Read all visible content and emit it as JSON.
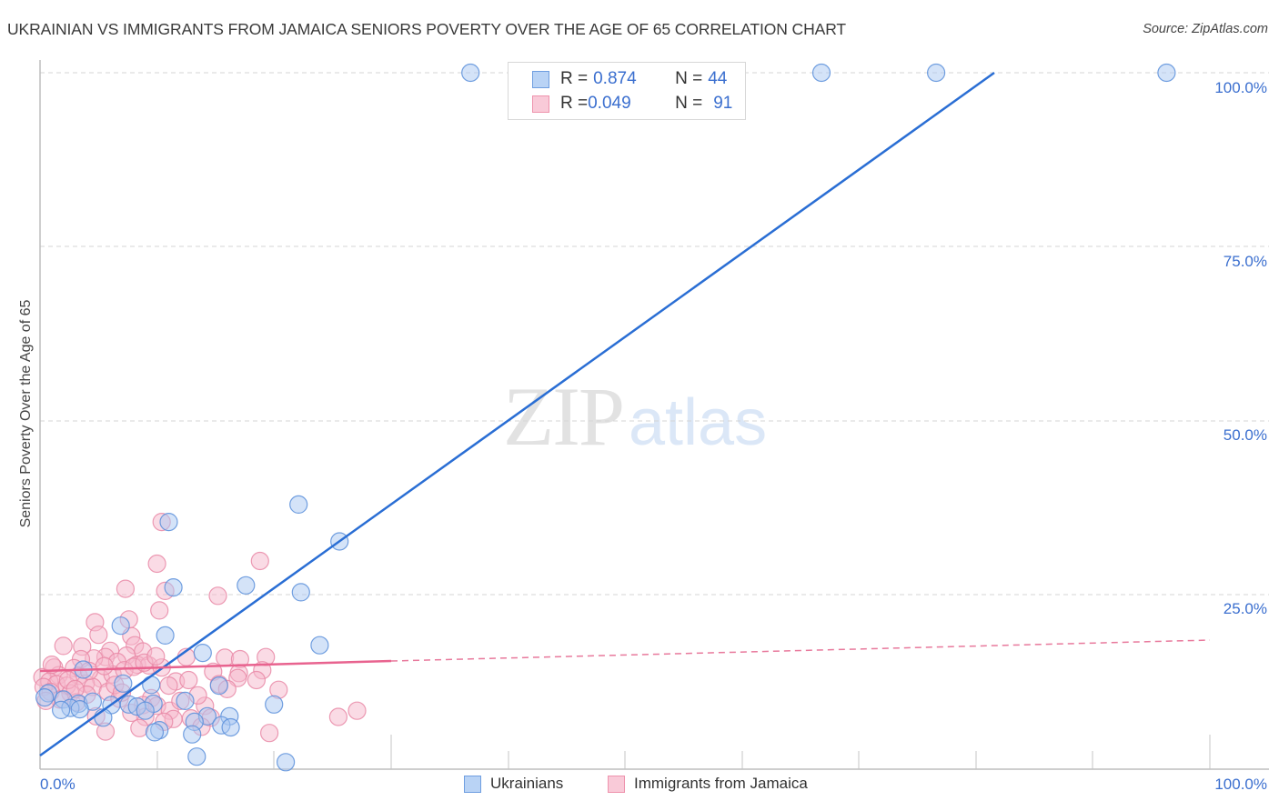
{
  "header": {
    "title": "UKRAINIAN VS IMMIGRANTS FROM JAMAICA SENIORS POVERTY OVER THE AGE OF 65 CORRELATION CHART",
    "source": "Source: ZipAtlas.com"
  },
  "watermark": {
    "zip": "ZIP",
    "atlas": "atlas"
  },
  "axes": {
    "ylabel": "Seniors Poverty Over the Age of 65",
    "yticks": [
      "100.0%",
      "75.0%",
      "50.0%",
      "25.0%"
    ],
    "xticks": [
      "0.0%",
      "100.0%"
    ]
  },
  "legend": {
    "rows": [
      {
        "r_label": "R = ",
        "r_value": "0.874",
        "n_label": "N = ",
        "n_value": "44",
        "color": "#a9c8f2",
        "border": "#6f9ee0"
      },
      {
        "r_label": "R = ",
        "r_value": "0.049",
        "n_label": "N = ",
        "n_value": "91",
        "color": "#f8c3d3",
        "border": "#ee93ad"
      }
    ]
  },
  "bottom_legend": {
    "items": [
      {
        "label": "Ukrainians",
        "color": "#b9d3f5",
        "border": "#6f9ee0"
      },
      {
        "label": "Immigrants from Jamaica",
        "color": "#f9cad8",
        "border": "#ee93ad"
      }
    ]
  },
  "colors": {
    "blue_line": "#2a6ed4",
    "pink_line": "#e8638f",
    "blue_fill": "#a9c8f2",
    "blue_stroke": "#5b8fdb",
    "pink_fill": "#f6b8cb",
    "pink_stroke": "#e98aa7",
    "tick_text": "#3b6fcf"
  },
  "chart_data": {
    "type": "scatter",
    "title": "UKRAINIAN VS IMMIGRANTS FROM JAMAICA SENIORS POVERTY OVER THE AGE OF 65 CORRELATION CHART",
    "xlabel": "",
    "ylabel": "Seniors Poverty Over the Age of 65",
    "xlim": [
      0,
      100
    ],
    "ylim": [
      0,
      100
    ],
    "x_tick_labels": [
      "0.0%",
      "100.0%"
    ],
    "y_tick_labels": [
      "25.0%",
      "50.0%",
      "75.0%",
      "100.0%"
    ],
    "grid": "horizontal dashed at 25/50/75/100",
    "legend_position": "bottom",
    "series": [
      {
        "name": "Ukrainians",
        "R": 0.874,
        "N": 44,
        "trendline": {
          "x": [
            0,
            81.6
          ],
          "y": [
            2.0,
            100.0
          ],
          "style": "solid"
        },
        "points": [
          [
            36.8,
            100.0
          ],
          [
            66.8,
            100.0
          ],
          [
            76.6,
            100.0
          ],
          [
            96.3,
            100.0
          ],
          [
            22.1,
            38.0
          ],
          [
            25.6,
            32.7
          ],
          [
            11.0,
            35.5
          ],
          [
            17.6,
            26.4
          ],
          [
            11.4,
            26.1
          ],
          [
            22.3,
            25.4
          ],
          [
            6.9,
            20.6
          ],
          [
            10.7,
            19.2
          ],
          [
            23.9,
            17.8
          ],
          [
            13.9,
            16.7
          ],
          [
            3.7,
            14.3
          ],
          [
            7.1,
            12.3
          ],
          [
            9.5,
            12.1
          ],
          [
            15.3,
            12.0
          ],
          [
            0.7,
            10.9
          ],
          [
            0.4,
            10.3
          ],
          [
            2.0,
            10.0
          ],
          [
            3.3,
            9.4
          ],
          [
            4.5,
            9.7
          ],
          [
            7.6,
            9.3
          ],
          [
            9.7,
            9.4
          ],
          [
            12.4,
            9.8
          ],
          [
            20.0,
            9.3
          ],
          [
            6.1,
            9.2
          ],
          [
            8.3,
            9.0
          ],
          [
            2.6,
            8.8
          ],
          [
            3.4,
            8.6
          ],
          [
            1.8,
            8.5
          ],
          [
            9.0,
            8.4
          ],
          [
            14.3,
            7.6
          ],
          [
            16.2,
            7.6
          ],
          [
            5.4,
            7.4
          ],
          [
            13.2,
            6.8
          ],
          [
            15.5,
            6.3
          ],
          [
            10.2,
            5.6
          ],
          [
            9.8,
            5.3
          ],
          [
            13.0,
            5.0
          ],
          [
            16.3,
            6.0
          ],
          [
            13.4,
            1.8
          ],
          [
            21.0,
            1.0
          ]
        ]
      },
      {
        "name": "Immigrants from Jamaica",
        "R": 0.049,
        "N": 91,
        "trendline": {
          "x": [
            0,
            30,
            100
          ],
          "y": [
            14.0,
            15.2,
            18.3
          ],
          "style": "solid to 30%, dashed beyond"
        },
        "points": [
          [
            10.4,
            35.5
          ],
          [
            10.0,
            29.5
          ],
          [
            18.8,
            29.9
          ],
          [
            7.3,
            25.9
          ],
          [
            10.7,
            25.6
          ],
          [
            15.2,
            24.9
          ],
          [
            10.2,
            22.8
          ],
          [
            7.6,
            21.5
          ],
          [
            4.7,
            21.1
          ],
          [
            5.0,
            19.3
          ],
          [
            7.8,
            19.1
          ],
          [
            2.0,
            17.7
          ],
          [
            3.6,
            17.6
          ],
          [
            8.1,
            17.8
          ],
          [
            6.0,
            17.0
          ],
          [
            8.8,
            16.9
          ],
          [
            5.6,
            16.1
          ],
          [
            4.6,
            15.9
          ],
          [
            7.4,
            16.3
          ],
          [
            12.5,
            16.1
          ],
          [
            15.8,
            16.0
          ],
          [
            17.1,
            15.8
          ],
          [
            19.3,
            16.1
          ],
          [
            3.5,
            15.8
          ],
          [
            6.6,
            15.4
          ],
          [
            8.3,
            15.0
          ],
          [
            9.3,
            14.9
          ],
          [
            10.4,
            14.6
          ],
          [
            1.2,
            14.6
          ],
          [
            2.9,
            14.5
          ],
          [
            1.6,
            13.5
          ],
          [
            3.3,
            13.4
          ],
          [
            5.2,
            13.0
          ],
          [
            6.2,
            13.6
          ],
          [
            7.2,
            14.2
          ],
          [
            8.0,
            14.7
          ],
          [
            14.8,
            14.0
          ],
          [
            17.0,
            13.8
          ],
          [
            19.0,
            14.2
          ],
          [
            0.2,
            13.2
          ],
          [
            0.8,
            12.6
          ],
          [
            1.4,
            12.2
          ],
          [
            2.3,
            12.0
          ],
          [
            3.9,
            12.3
          ],
          [
            4.5,
            11.8
          ],
          [
            0.3,
            11.8
          ],
          [
            0.9,
            11.1
          ],
          [
            11.6,
            12.6
          ],
          [
            12.7,
            12.8
          ],
          [
            15.3,
            12.2
          ],
          [
            16.9,
            13.1
          ],
          [
            5.8,
            11.1
          ],
          [
            2.6,
            10.9
          ],
          [
            4.0,
            10.7
          ],
          [
            6.8,
            10.1
          ],
          [
            9.5,
            10.2
          ],
          [
            20.4,
            11.4
          ],
          [
            1.7,
            10.0
          ],
          [
            3.1,
            9.6
          ],
          [
            8.8,
            9.2
          ],
          [
            10.0,
            9.1
          ],
          [
            14.1,
            9.1
          ],
          [
            11.1,
            8.4
          ],
          [
            4.8,
            7.6
          ],
          [
            9.0,
            7.5
          ],
          [
            14.6,
            7.4
          ],
          [
            12.9,
            7.3
          ],
          [
            11.4,
            7.2
          ],
          [
            25.5,
            7.5
          ],
          [
            27.1,
            8.4
          ],
          [
            10.6,
            6.8
          ],
          [
            5.6,
            5.4
          ],
          [
            8.5,
            5.9
          ],
          [
            19.6,
            5.2
          ],
          [
            13.8,
            6.1
          ],
          [
            2.4,
            12.8
          ],
          [
            6.4,
            12.1
          ],
          [
            3.0,
            11.5
          ],
          [
            7.0,
            11.0
          ],
          [
            1.0,
            15.0
          ],
          [
            4.2,
            14.1
          ],
          [
            5.5,
            14.8
          ],
          [
            8.9,
            15.3
          ],
          [
            9.9,
            16.2
          ],
          [
            11.0,
            12.0
          ],
          [
            12.0,
            9.8
          ],
          [
            13.5,
            10.6
          ],
          [
            16.0,
            11.5
          ],
          [
            18.5,
            12.8
          ],
          [
            0.5,
            9.8
          ],
          [
            7.8,
            8.1
          ]
        ]
      }
    ]
  }
}
